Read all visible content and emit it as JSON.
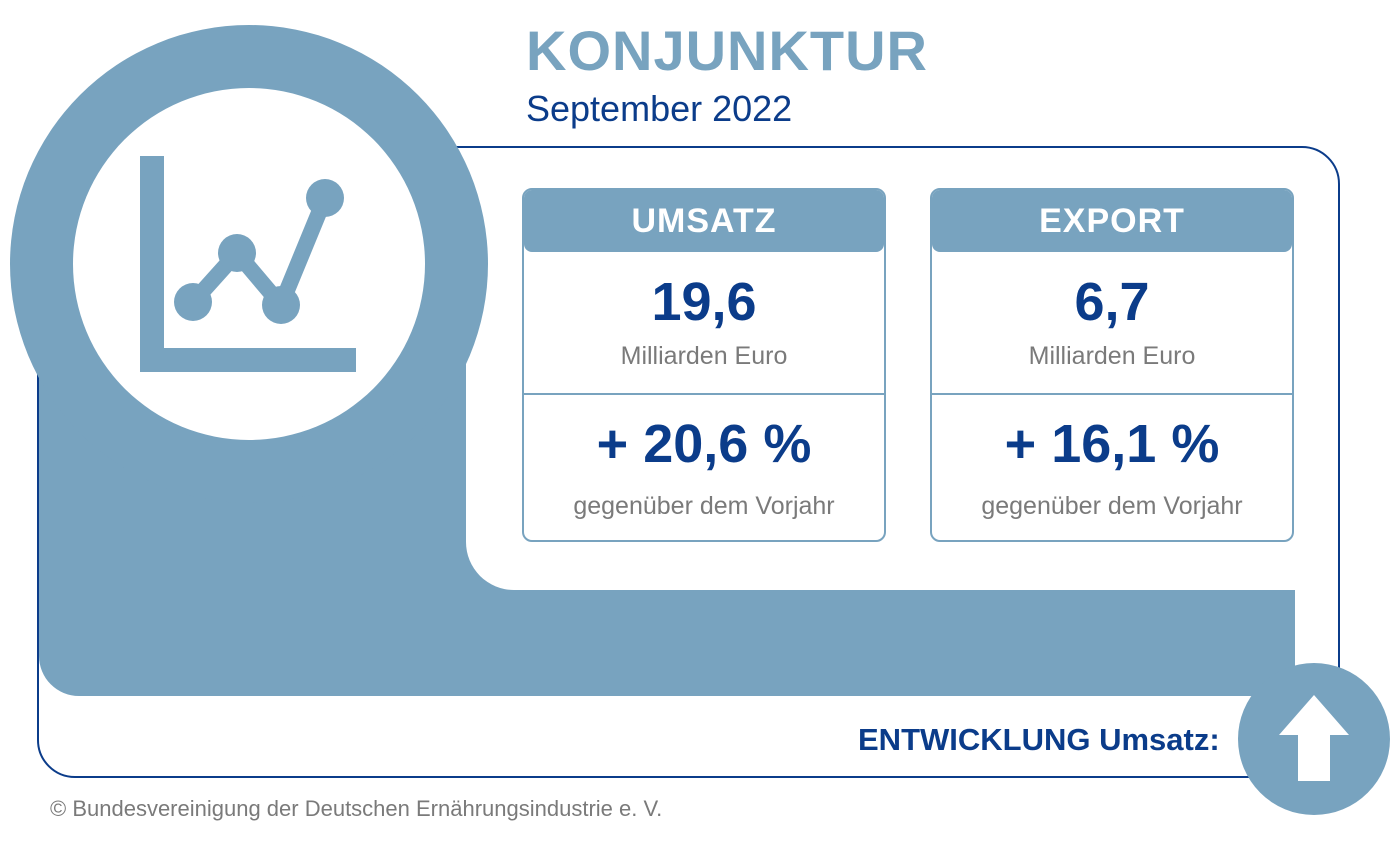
{
  "header": {
    "title": "KONJUNKTUR",
    "subtitle": "September 2022"
  },
  "cards": [
    {
      "heading": "UMSATZ",
      "value": "19,6",
      "unit": "Milliarden Euro",
      "change": "+ 20,6 %",
      "change_note": "gegenüber dem Vorjahr"
    },
    {
      "heading": "EXPORT",
      "value": "6,7",
      "unit": "Milliarden Euro",
      "change": "+ 16,1 %",
      "change_note": "gegenüber dem Vorjahr"
    }
  ],
  "development": {
    "label": "ENTWICKLUNG Umsatz:",
    "direction_icon": "arrow-up-icon"
  },
  "icons": {
    "main": "line-chart-icon"
  },
  "colors": {
    "accent": "#78a3bf",
    "dark_blue": "#0b3c8a",
    "gray_text": "#7a7a7a"
  },
  "footer": {
    "copyright": "© Bundesvereinigung der Deutschen Ernährungsindustrie e. V."
  }
}
